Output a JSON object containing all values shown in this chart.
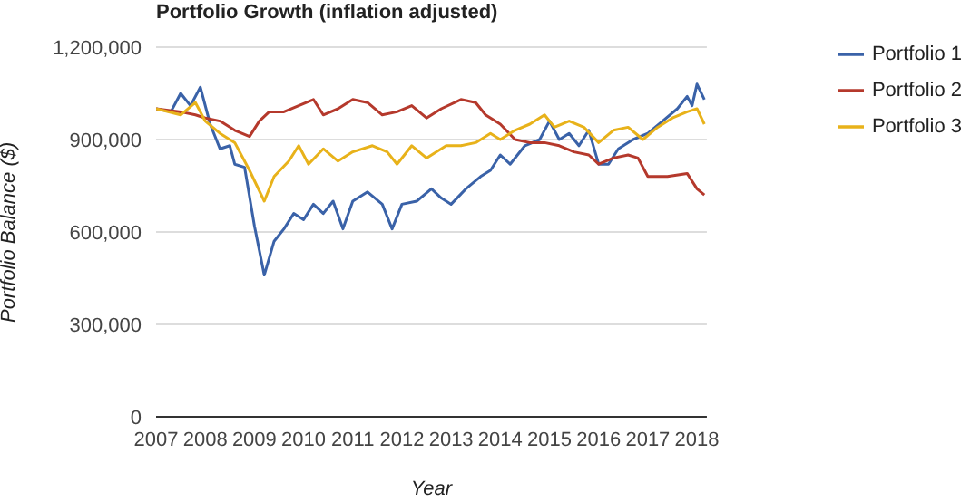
{
  "chart_data": {
    "type": "line",
    "title": "Portfolio Growth (inflation adjusted)",
    "xlabel": "Year",
    "ylabel": "Portfolio Balance ($)",
    "xlim": [
      2007,
      2018.2
    ],
    "xticks": [
      2007,
      2008,
      2009,
      2010,
      2011,
      2012,
      2013,
      2014,
      2015,
      2016,
      2017,
      2018
    ],
    "ylim": [
      0,
      1200000
    ],
    "yticks": [
      {
        "value": 0,
        "label": "0"
      },
      {
        "value": 300000,
        "label": "300,000"
      },
      {
        "value": 600000,
        "label": "600,000"
      },
      {
        "value": 900000,
        "label": "900,000"
      },
      {
        "value": 1200000,
        "label": "1,200,000"
      }
    ],
    "grid": "y",
    "legend": "top right",
    "marker": "none",
    "line_style": "solid",
    "series": [
      {
        "name": "Portfolio 1",
        "color": "#3a62a8",
        "x": [
          2007,
          2007.3,
          2007.5,
          2007.7,
          2007.9,
          2008.1,
          2008.3,
          2008.5,
          2008.6,
          2008.8,
          2009,
          2009.2,
          2009.4,
          2009.6,
          2009.8,
          2010,
          2010.2,
          2010.4,
          2010.6,
          2010.8,
          2011,
          2011.3,
          2011.6,
          2011.8,
          2012,
          2012.3,
          2012.6,
          2012.8,
          2013,
          2013.3,
          2013.6,
          2013.8,
          2014,
          2014.2,
          2014.5,
          2014.8,
          2015,
          2015.2,
          2015.4,
          2015.6,
          2015.8,
          2016,
          2016.2,
          2016.4,
          2016.7,
          2017,
          2017.3,
          2017.6,
          2017.8,
          2017.9,
          2018,
          2018.15
        ],
        "values": [
          1000000,
          990000,
          1050000,
          1010000,
          1070000,
          950000,
          870000,
          880000,
          820000,
          810000,
          620000,
          460000,
          570000,
          610000,
          660000,
          640000,
          690000,
          660000,
          700000,
          610000,
          700000,
          730000,
          690000,
          610000,
          690000,
          700000,
          740000,
          710000,
          690000,
          740000,
          780000,
          800000,
          850000,
          820000,
          880000,
          900000,
          960000,
          900000,
          920000,
          880000,
          930000,
          820000,
          820000,
          870000,
          900000,
          920000,
          960000,
          1000000,
          1040000,
          1010000,
          1080000,
          1030000
        ]
      },
      {
        "name": "Portfolio 2",
        "color": "#b5392c",
        "x": [
          2007,
          2007.5,
          2007.8,
          2008,
          2008.3,
          2008.6,
          2008.9,
          2009.1,
          2009.3,
          2009.6,
          2009.9,
          2010.2,
          2010.4,
          2010.7,
          2011,
          2011.3,
          2011.6,
          2011.9,
          2012.2,
          2012.5,
          2012.8,
          2013.2,
          2013.5,
          2013.7,
          2014,
          2014.3,
          2014.6,
          2014.9,
          2015.2,
          2015.5,
          2015.8,
          2016,
          2016.3,
          2016.6,
          2016.8,
          2017,
          2017.4,
          2017.8,
          2018,
          2018.15
        ],
        "values": [
          1000000,
          990000,
          980000,
          970000,
          960000,
          930000,
          910000,
          960000,
          990000,
          990000,
          1010000,
          1030000,
          980000,
          1000000,
          1030000,
          1020000,
          980000,
          990000,
          1010000,
          970000,
          1000000,
          1030000,
          1020000,
          980000,
          950000,
          900000,
          890000,
          890000,
          880000,
          860000,
          850000,
          820000,
          840000,
          850000,
          840000,
          780000,
          780000,
          790000,
          740000,
          720000
        ]
      },
      {
        "name": "Portfolio 3",
        "color": "#e8b21a",
        "x": [
          2007,
          2007.5,
          2007.8,
          2008,
          2008.3,
          2008.6,
          2008.9,
          2009.2,
          2009.4,
          2009.7,
          2009.9,
          2010.1,
          2010.4,
          2010.7,
          2011,
          2011.4,
          2011.7,
          2011.9,
          2012.2,
          2012.5,
          2012.9,
          2013.2,
          2013.5,
          2013.8,
          2014,
          2014.3,
          2014.6,
          2014.9,
          2015.1,
          2015.4,
          2015.7,
          2016,
          2016.3,
          2016.6,
          2016.9,
          2017.2,
          2017.5,
          2017.8,
          2018,
          2018.15
        ],
        "values": [
          1000000,
          980000,
          1020000,
          960000,
          920000,
          890000,
          800000,
          700000,
          780000,
          830000,
          880000,
          820000,
          870000,
          830000,
          860000,
          880000,
          860000,
          820000,
          880000,
          840000,
          880000,
          880000,
          890000,
          920000,
          900000,
          930000,
          950000,
          980000,
          940000,
          960000,
          940000,
          890000,
          930000,
          940000,
          900000,
          940000,
          970000,
          990000,
          1000000,
          950000
        ]
      }
    ]
  }
}
